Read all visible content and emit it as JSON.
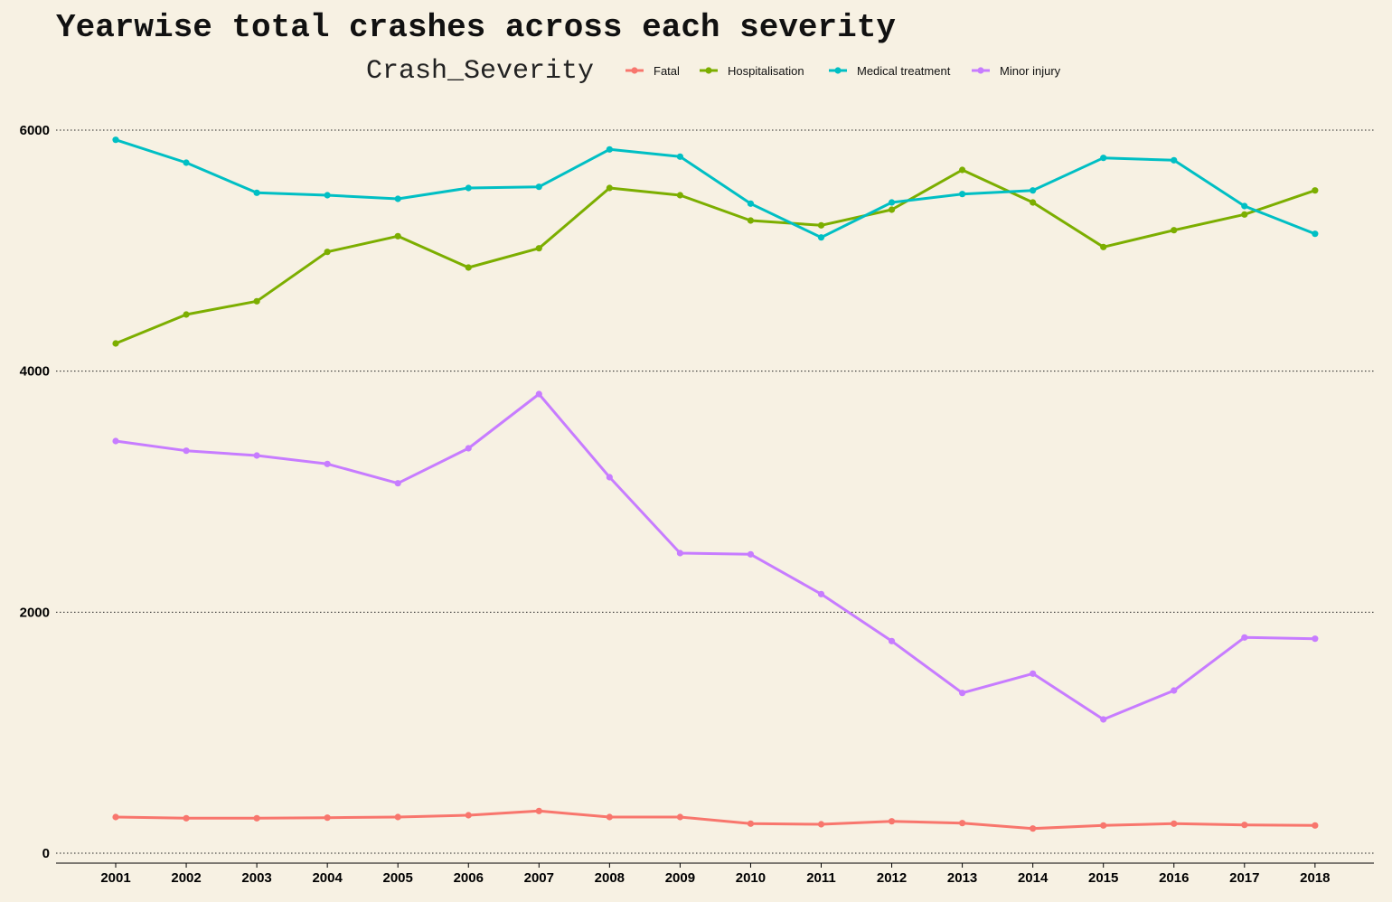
{
  "chart_data": {
    "type": "line",
    "title": "Yearwise total crashes across each severity",
    "xlabel": "",
    "ylabel": "",
    "legend": {
      "title": "Crash_Severity",
      "placement": "top"
    },
    "x": [
      "2001",
      "2002",
      "2003",
      "2004",
      "2005",
      "2006",
      "2007",
      "2008",
      "2009",
      "2010",
      "2011",
      "2012",
      "2013",
      "2014",
      "2015",
      "2016",
      "2017",
      "2018"
    ],
    "ylim": [
      0,
      6000
    ],
    "yticks": [
      0,
      2000,
      4000,
      6000
    ],
    "ytick_labels": [
      "0",
      "2000",
      "4000",
      "6000"
    ],
    "grid": {
      "horizontal": true,
      "vertical": false,
      "style": "dotted"
    },
    "series": [
      {
        "name": "Fatal",
        "color": "#f8766d",
        "values": [
          300,
          290,
          290,
          295,
          300,
          315,
          350,
          300,
          300,
          245,
          240,
          265,
          250,
          205,
          230,
          245,
          235,
          230
        ]
      },
      {
        "name": "Hospitalisation",
        "color": "#7cae00",
        "values": [
          4230,
          4470,
          4580,
          4990,
          5120,
          4860,
          5020,
          5520,
          5460,
          5250,
          5210,
          5340,
          5670,
          5400,
          5030,
          5170,
          5300,
          5500
        ]
      },
      {
        "name": "Medical treatment",
        "color": "#00bfc4",
        "values": [
          5920,
          5730,
          5480,
          5460,
          5430,
          5520,
          5530,
          5840,
          5780,
          5390,
          5110,
          5400,
          5470,
          5500,
          5770,
          5750,
          5370,
          5140
        ]
      },
      {
        "name": "Minor injury",
        "color": "#c77cff",
        "values": [
          3420,
          3340,
          3300,
          3230,
          3070,
          3360,
          3810,
          3120,
          2490,
          2480,
          2150,
          1760,
          1330,
          1490,
          1110,
          1350,
          1790,
          1780
        ]
      }
    ]
  }
}
